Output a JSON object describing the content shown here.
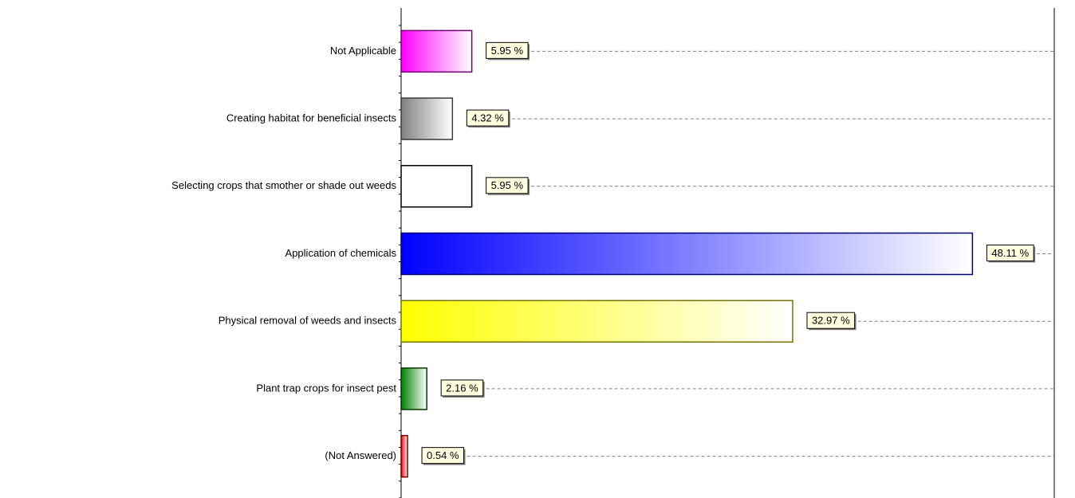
{
  "chart_data": {
    "type": "bar",
    "orientation": "horizontal",
    "categories": [
      "Not Applicable",
      "Creating habitat for beneficial insects",
      "Selecting crops that smother or shade out weeds",
      "Application of chemicals",
      "Physical removal of weeds and insects",
      "Plant trap crops for insect pest",
      "(Not Answered)"
    ],
    "values": [
      5.95,
      4.32,
      5.95,
      48.11,
      32.97,
      2.16,
      0.54
    ],
    "value_labels": [
      "5.95 %",
      "4.32 %",
      "5.95 %",
      "48.11 %",
      "32.97 %",
      "2.16 %",
      "0.54 %"
    ],
    "colors": [
      "#ff00ff",
      "#808080",
      "#ffffff",
      "#0000ff",
      "#ffff00",
      "#008000",
      "#ff0000"
    ],
    "xlim": [
      0,
      55
    ]
  }
}
